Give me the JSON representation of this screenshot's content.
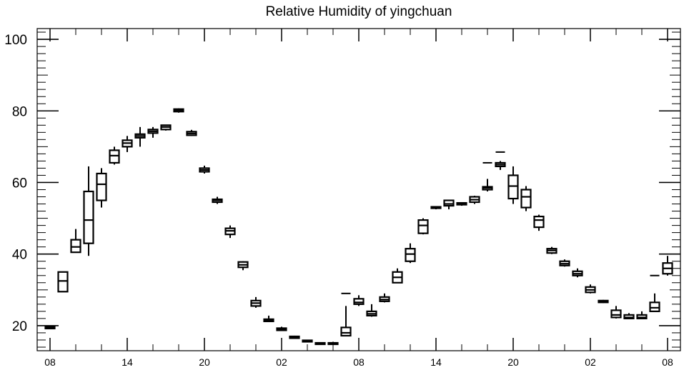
{
  "chart_data": {
    "type": "box",
    "title": "Relative Humidity of yingchuan",
    "xlabel": "",
    "ylabel": "",
    "ylim": [
      13,
      103
    ],
    "y_ticks": [
      20,
      40,
      60,
      80,
      100
    ],
    "x_ticks": [
      "08",
      "14",
      "20",
      "02",
      "08",
      "14",
      "20",
      "02",
      "08"
    ],
    "x_tick_hours": [
      0,
      6,
      12,
      18,
      24,
      30,
      36,
      42,
      48
    ],
    "grid": false,
    "boxes": [
      {
        "hour": 0,
        "whisker_low": 19.0,
        "q1": 19.2,
        "median": 19.5,
        "q3": 19.8,
        "whisker_high": 20.0,
        "outliers": []
      },
      {
        "hour": 1,
        "whisker_low": 29.5,
        "q1": 29.5,
        "median": 32.5,
        "q3": 35.0,
        "whisker_high": 35.0,
        "outliers": []
      },
      {
        "hour": 2,
        "whisker_low": 40.5,
        "q1": 40.5,
        "median": 42.0,
        "q3": 44.0,
        "whisker_high": 47.0,
        "outliers": []
      },
      {
        "hour": 3,
        "whisker_low": 39.5,
        "q1": 43.0,
        "median": 49.5,
        "q3": 57.5,
        "whisker_high": 64.5,
        "outliers": []
      },
      {
        "hour": 4,
        "whisker_low": 53.0,
        "q1": 55.0,
        "median": 59.5,
        "q3": 62.5,
        "whisker_high": 64.0,
        "outliers": []
      },
      {
        "hour": 5,
        "whisker_low": 65.0,
        "q1": 65.5,
        "median": 67.5,
        "q3": 69.0,
        "whisker_high": 70.0,
        "outliers": []
      },
      {
        "hour": 6,
        "whisker_low": 68.5,
        "q1": 70.0,
        "median": 71.0,
        "q3": 71.8,
        "whisker_high": 73.0,
        "outliers": []
      },
      {
        "hour": 7,
        "whisker_low": 70.0,
        "q1": 72.5,
        "median": 73.0,
        "q3": 73.5,
        "whisker_high": 75.5,
        "outliers": []
      },
      {
        "hour": 8,
        "whisker_low": 72.5,
        "q1": 73.8,
        "median": 74.3,
        "q3": 74.8,
        "whisker_high": 75.5,
        "outliers": []
      },
      {
        "hour": 9,
        "whisker_low": 74.5,
        "q1": 74.8,
        "median": 75.5,
        "q3": 76.0,
        "whisker_high": 76.0,
        "outliers": []
      },
      {
        "hour": 10,
        "whisker_low": 79.5,
        "q1": 79.8,
        "median": 80.2,
        "q3": 80.5,
        "whisker_high": 80.7,
        "outliers": []
      },
      {
        "hour": 11,
        "whisker_low": 73.0,
        "q1": 73.2,
        "median": 73.7,
        "q3": 74.2,
        "whisker_high": 74.7,
        "outliers": []
      },
      {
        "hour": 12,
        "whisker_low": 62.5,
        "q1": 63.0,
        "median": 63.5,
        "q3": 64.0,
        "whisker_high": 64.7,
        "outliers": []
      },
      {
        "hour": 13,
        "whisker_low": 54.0,
        "q1": 54.5,
        "median": 55.0,
        "q3": 55.3,
        "whisker_high": 56.0,
        "outliers": []
      },
      {
        "hour": 14,
        "whisker_low": 44.5,
        "q1": 45.5,
        "median": 46.5,
        "q3": 47.2,
        "whisker_high": 48.0,
        "outliers": []
      },
      {
        "hour": 15,
        "whisker_low": 35.5,
        "q1": 36.3,
        "median": 37.0,
        "q3": 37.8,
        "whisker_high": 38.0,
        "outliers": []
      },
      {
        "hour": 16,
        "whisker_low": 25.0,
        "q1": 25.5,
        "median": 26.3,
        "q3": 27.0,
        "whisker_high": 28.0,
        "outliers": []
      },
      {
        "hour": 17,
        "whisker_low": 21.0,
        "q1": 21.2,
        "median": 21.5,
        "q3": 21.8,
        "whisker_high": 22.8,
        "outliers": []
      },
      {
        "hour": 18,
        "whisker_low": 18.5,
        "q1": 18.7,
        "median": 19.0,
        "q3": 19.3,
        "whisker_high": 19.7,
        "outliers": []
      },
      {
        "hour": 19,
        "whisker_low": 16.3,
        "q1": 16.5,
        "median": 16.8,
        "q3": 17.0,
        "whisker_high": 17.2,
        "outliers": []
      },
      {
        "hour": 20,
        "whisker_low": 15.3,
        "q1": 15.5,
        "median": 15.7,
        "q3": 15.9,
        "whisker_high": 16.0,
        "outliers": []
      },
      {
        "hour": 21,
        "whisker_low": 14.8,
        "q1": 14.9,
        "median": 15.0,
        "q3": 15.2,
        "whisker_high": 15.3,
        "outliers": []
      },
      {
        "hour": 22,
        "whisker_low": 14.8,
        "q1": 14.9,
        "median": 15.0,
        "q3": 15.2,
        "whisker_high": 15.5,
        "outliers": []
      },
      {
        "hour": 23,
        "whisker_low": 17.0,
        "q1": 17.2,
        "median": 18.0,
        "q3": 19.5,
        "whisker_high": 25.5,
        "outliers": [
          29.0
        ]
      },
      {
        "hour": 24,
        "whisker_low": 25.5,
        "q1": 26.0,
        "median": 26.5,
        "q3": 27.5,
        "whisker_high": 28.5,
        "outliers": []
      },
      {
        "hour": 25,
        "whisker_low": 22.5,
        "q1": 22.8,
        "median": 23.3,
        "q3": 24.0,
        "whisker_high": 26.0,
        "outliers": []
      },
      {
        "hour": 26,
        "whisker_low": 26.5,
        "q1": 26.8,
        "median": 27.3,
        "q3": 28.0,
        "whisker_high": 29.0,
        "outliers": []
      },
      {
        "hour": 27,
        "whisker_low": 32.0,
        "q1": 32.0,
        "median": 33.5,
        "q3": 35.0,
        "whisker_high": 36.0,
        "outliers": []
      },
      {
        "hour": 28,
        "whisker_low": 37.5,
        "q1": 38.0,
        "median": 40.0,
        "q3": 41.5,
        "whisker_high": 43.0,
        "outliers": []
      },
      {
        "hour": 29,
        "whisker_low": 45.5,
        "q1": 45.8,
        "median": 48.0,
        "q3": 49.5,
        "whisker_high": 50.0,
        "outliers": []
      },
      {
        "hour": 30,
        "whisker_low": 52.5,
        "q1": 52.8,
        "median": 53.0,
        "q3": 53.2,
        "whisker_high": 53.4,
        "outliers": []
      },
      {
        "hour": 31,
        "whisker_low": 52.5,
        "q1": 53.5,
        "median": 54.0,
        "q3": 55.0,
        "whisker_high": 55.0,
        "outliers": []
      },
      {
        "hour": 32,
        "whisker_low": 53.5,
        "q1": 53.8,
        "median": 54.0,
        "q3": 54.3,
        "whisker_high": 54.5,
        "outliers": []
      },
      {
        "hour": 33,
        "whisker_low": 54.0,
        "q1": 54.5,
        "median": 55.2,
        "q3": 56.0,
        "whisker_high": 56.3,
        "outliers": []
      },
      {
        "hour": 34,
        "whisker_low": 57.5,
        "q1": 58.0,
        "median": 58.5,
        "q3": 58.8,
        "whisker_high": 61.0,
        "outliers": [
          65.5
        ]
      },
      {
        "hour": 35,
        "whisker_low": 63.5,
        "q1": 64.5,
        "median": 65.0,
        "q3": 65.5,
        "whisker_high": 66.0,
        "outliers": [
          68.5
        ]
      },
      {
        "hour": 36,
        "whisker_low": 54.0,
        "q1": 55.5,
        "median": 59.0,
        "q3": 62.0,
        "whisker_high": 64.5,
        "outliers": []
      },
      {
        "hour": 37,
        "whisker_low": 52.0,
        "q1": 53.0,
        "median": 56.0,
        "q3": 58.0,
        "whisker_high": 59.0,
        "outliers": []
      },
      {
        "hour": 38,
        "whisker_low": 46.5,
        "q1": 47.5,
        "median": 49.5,
        "q3": 50.5,
        "whisker_high": 51.0,
        "outliers": []
      },
      {
        "hour": 39,
        "whisker_low": 40.0,
        "q1": 40.3,
        "median": 41.0,
        "q3": 41.5,
        "whisker_high": 42.0,
        "outliers": []
      },
      {
        "hour": 40,
        "whisker_low": 36.5,
        "q1": 36.8,
        "median": 37.3,
        "q3": 38.0,
        "whisker_high": 38.5,
        "outliers": []
      },
      {
        "hour": 41,
        "whisker_low": 33.5,
        "q1": 34.0,
        "median": 34.5,
        "q3": 35.2,
        "whisker_high": 36.0,
        "outliers": []
      },
      {
        "hour": 42,
        "whisker_low": 29.0,
        "q1": 29.3,
        "median": 30.0,
        "q3": 30.8,
        "whisker_high": 31.5,
        "outliers": []
      },
      {
        "hour": 43,
        "whisker_low": 26.3,
        "q1": 26.5,
        "median": 26.8,
        "q3": 27.0,
        "whisker_high": 27.2,
        "outliers": []
      },
      {
        "hour": 44,
        "whisker_low": 22.0,
        "q1": 22.3,
        "median": 23.0,
        "q3": 24.3,
        "whisker_high": 25.5,
        "outliers": []
      },
      {
        "hour": 45,
        "whisker_low": 21.8,
        "q1": 22.0,
        "median": 22.3,
        "q3": 23.0,
        "whisker_high": 23.5,
        "outliers": []
      },
      {
        "hour": 46,
        "whisker_low": 21.8,
        "q1": 22.0,
        "median": 22.3,
        "q3": 23.0,
        "whisker_high": 24.0,
        "outliers": []
      },
      {
        "hour": 47,
        "whisker_low": 24.0,
        "q1": 24.0,
        "median": 25.0,
        "q3": 26.5,
        "whisker_high": 29.0,
        "outliers": [
          34.0
        ]
      },
      {
        "hour": 48,
        "whisker_low": 34.0,
        "q1": 34.5,
        "median": 36.0,
        "q3": 37.5,
        "whisker_high": 39.5,
        "outliers": []
      }
    ]
  }
}
